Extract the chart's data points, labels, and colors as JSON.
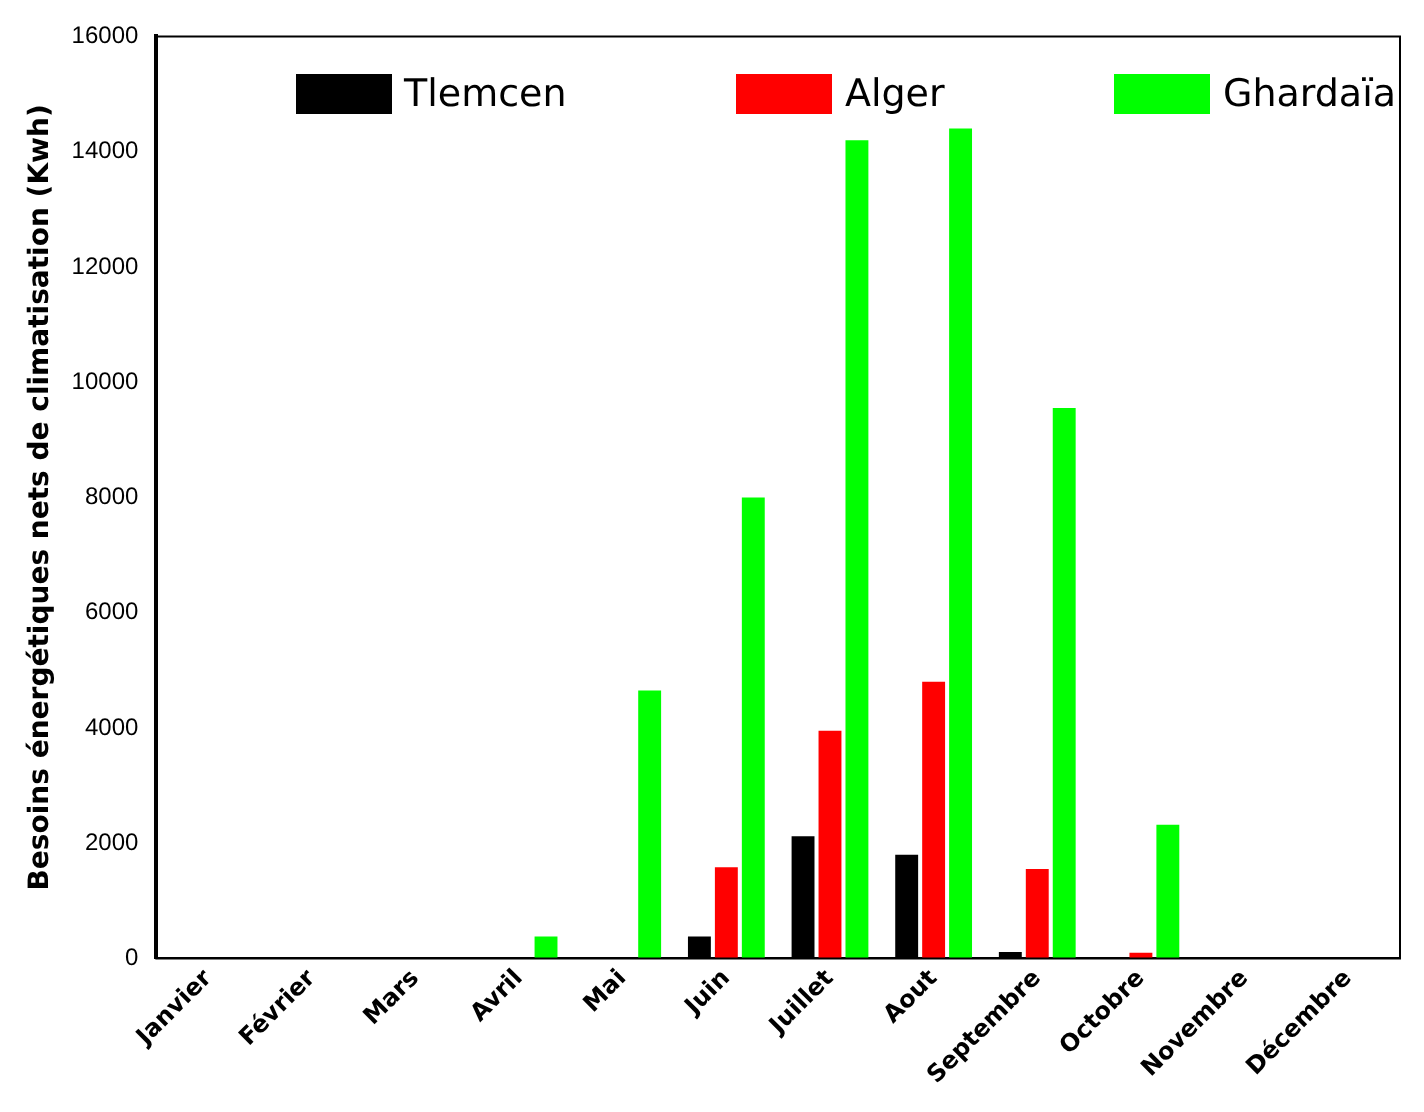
{
  "chart_data": {
    "type": "bar",
    "ylabel": "Besoins énergétiques nets de climatisation (Kwh)",
    "categories": [
      "Janvier",
      "Février",
      "Mars",
      "Avril",
      "Mai",
      "Juin",
      "Juillet",
      "Aout",
      "Septembre",
      "Octobre",
      "Novembre",
      "Décembre"
    ],
    "series": [
      {
        "name": "Tlemcen",
        "color": "#000000",
        "values": [
          0,
          0,
          0,
          0,
          0,
          380,
          2120,
          1800,
          110,
          0,
          0,
          0
        ]
      },
      {
        "name": "Alger",
        "color": "#ff0000",
        "values": [
          0,
          0,
          0,
          0,
          0,
          1580,
          3950,
          4800,
          1550,
          100,
          0,
          0
        ]
      },
      {
        "name": "Ghardaïa",
        "color": "#00ff00",
        "values": [
          0,
          0,
          0,
          380,
          4650,
          8000,
          14200,
          14400,
          9550,
          2320,
          0,
          0
        ]
      }
    ],
    "ylim": [
      0,
      16000
    ],
    "yticks": [
      0,
      2000,
      4000,
      6000,
      8000,
      10000,
      12000,
      14000,
      16000
    ],
    "grid": false,
    "legend": "top"
  }
}
